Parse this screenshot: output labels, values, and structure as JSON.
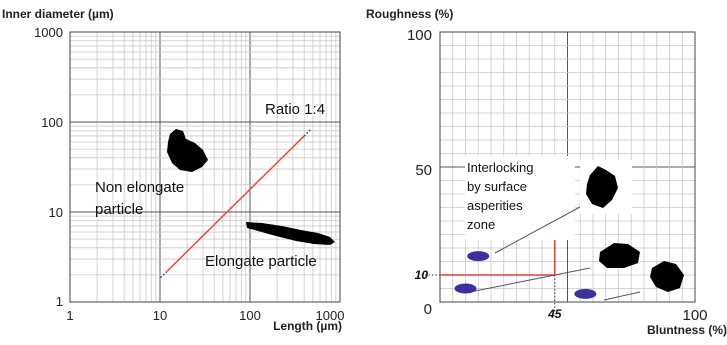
{
  "chart_data": [
    {
      "type": "line",
      "xscale": "log",
      "yscale": "log",
      "xlabel": "Length (µm)",
      "ylabel": "Inner diameter (µm)",
      "xlim": [
        1,
        1000
      ],
      "ylim": [
        1,
        1000
      ],
      "xticks": [
        "1",
        "10",
        "100",
        "1000"
      ],
      "yticks": [
        "1",
        "10",
        "100",
        "1000"
      ],
      "grid": true,
      "series": [
        {
          "name": "Ratio 1:4",
          "x": [
            12,
            400
          ],
          "y": [
            2.2,
            70
          ]
        }
      ],
      "annotations": {
        "ratio": "Ratio 1:4",
        "non_elongate_line1": "Non elongate",
        "non_elongate_line2": "particle",
        "elongate": "Elongate particle"
      }
    },
    {
      "type": "scatter",
      "xlabel": "Bluntness (%)",
      "ylabel": "Roughness (%)",
      "xlim": [
        0,
        100
      ],
      "ylim": [
        0,
        100
      ],
      "xticks": [
        "0",
        "100"
      ],
      "yticks": [
        "50",
        "100"
      ],
      "grid": true,
      "points": [
        {
          "x": 15,
          "y": 17
        },
        {
          "x": 10,
          "y": 5
        },
        {
          "x": 57,
          "y": 3
        }
      ],
      "thresholds": {
        "x": 45,
        "y": 10,
        "x_label": "45",
        "y_label": "10"
      },
      "zone": {
        "x": 37,
        "y": 37
      },
      "zone_label": [
        "Interlocking",
        "by surface",
        "asperities",
        "zone"
      ],
      "point_color": "#3d2f9e",
      "threshold_color": "#e0413a"
    }
  ],
  "colors": {
    "ratio_line": "#f04a2a",
    "threshold": "#e0413a",
    "marker": "#3d2f9e"
  }
}
